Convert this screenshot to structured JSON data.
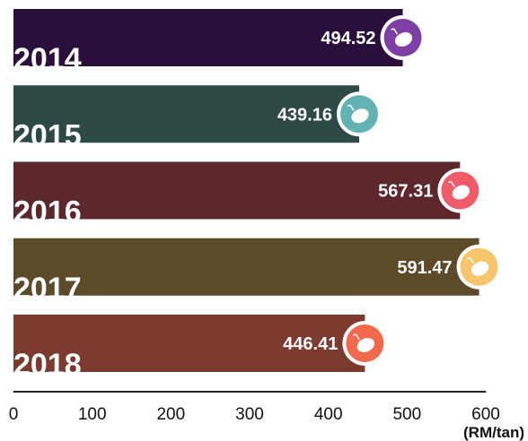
{
  "chart_data": {
    "type": "bar",
    "orientation": "horizontal",
    "categories": [
      "2014",
      "2015",
      "2016",
      "2017",
      "2018"
    ],
    "values": [
      494.52,
      439.16,
      567.31,
      591.47,
      446.41
    ],
    "colors": [
      "#2a0e3c",
      "#2d4a46",
      "#5c282d",
      "#5d4a29",
      "#7d3b30"
    ],
    "marker_colors": [
      "#7d3fa3",
      "#63b3b3",
      "#ef5b68",
      "#f7c56b",
      "#f26a4b"
    ],
    "x_label": "(RM/tan)",
    "xlim": [
      0,
      600
    ],
    "xticks": [
      0,
      100,
      200,
      300,
      400,
      500,
      600
    ]
  }
}
